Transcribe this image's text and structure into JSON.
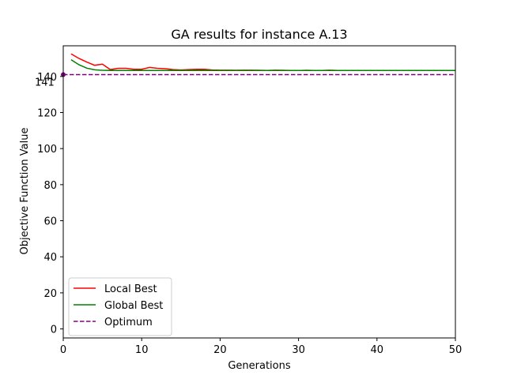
{
  "chart_data": {
    "type": "line",
    "title": "GA results for instance A.13",
    "xlabel": "Generations",
    "ylabel": "Objective Function Value",
    "xlim": [
      0,
      50
    ],
    "ylim": [
      -5,
      157
    ],
    "xticks": [
      0,
      10,
      20,
      30,
      40,
      50
    ],
    "yticks": [
      0,
      20,
      40,
      60,
      80,
      100,
      120,
      140
    ],
    "grid": false,
    "legend_position": "lower-left",
    "series": [
      {
        "name": "Local Best",
        "color": "#ff0000",
        "style": "solid",
        "x": [
          1,
          2,
          3,
          4,
          5,
          6,
          7,
          8,
          9,
          10,
          11,
          12,
          13,
          14,
          15,
          16,
          17,
          18,
          19,
          20,
          21,
          22,
          23,
          24,
          25,
          26,
          27,
          28,
          29,
          30,
          31,
          32,
          33,
          34,
          35,
          36,
          37,
          38,
          39,
          40,
          41,
          42,
          43,
          44,
          45,
          46,
          47,
          48,
          49,
          50
        ],
        "y": [
          152.5,
          150,
          148,
          146.2,
          146.8,
          143.8,
          144.5,
          144.5,
          144,
          144,
          145,
          144.5,
          144.3,
          143.8,
          143.6,
          143.8,
          144,
          144,
          143.6,
          143.5,
          143.5,
          143.4,
          143.5,
          143.5,
          143.4,
          143.3,
          143.5,
          143.4,
          143.3,
          143.3,
          143.4,
          143.3,
          143.3,
          143.5,
          143.3,
          143.3,
          143.3,
          143.3,
          143.3,
          143.3,
          143.3,
          143.3,
          143.3,
          143.3,
          143.3,
          143.3,
          143.3,
          143.3,
          143.3,
          143.3
        ]
      },
      {
        "name": "Global Best",
        "color": "#008000",
        "style": "solid",
        "x": [
          1,
          2,
          3,
          4,
          5,
          6,
          7,
          8,
          9,
          10,
          11,
          12,
          13,
          14,
          15,
          16,
          17,
          18,
          19,
          20,
          21,
          22,
          23,
          24,
          25,
          26,
          27,
          28,
          29,
          30,
          31,
          32,
          33,
          34,
          35,
          36,
          37,
          38,
          39,
          40,
          41,
          42,
          43,
          44,
          45,
          46,
          47,
          48,
          49,
          50
        ],
        "y": [
          149.3,
          146.5,
          144.6,
          143.7,
          143.4,
          143.3,
          143.3,
          143.3,
          143.3,
          143.3,
          143.3,
          143.3,
          143.3,
          143.3,
          143.3,
          143.3,
          143.3,
          143.3,
          143.3,
          143.3,
          143.3,
          143.3,
          143.3,
          143.3,
          143.3,
          143.3,
          143.3,
          143.3,
          143.3,
          143.3,
          143.3,
          143.3,
          143.3,
          143.3,
          143.3,
          143.3,
          143.3,
          143.3,
          143.3,
          143.3,
          143.3,
          143.3,
          143.3,
          143.3,
          143.3,
          143.3,
          143.3,
          143.3,
          143.3,
          143.3
        ]
      },
      {
        "name": "Optimum",
        "color": "#800080",
        "style": "dashed",
        "x": [
          0,
          50
        ],
        "y": [
          141,
          141
        ]
      }
    ],
    "annotations": [
      {
        "text": "141",
        "x": 0,
        "y": 141
      }
    ]
  }
}
